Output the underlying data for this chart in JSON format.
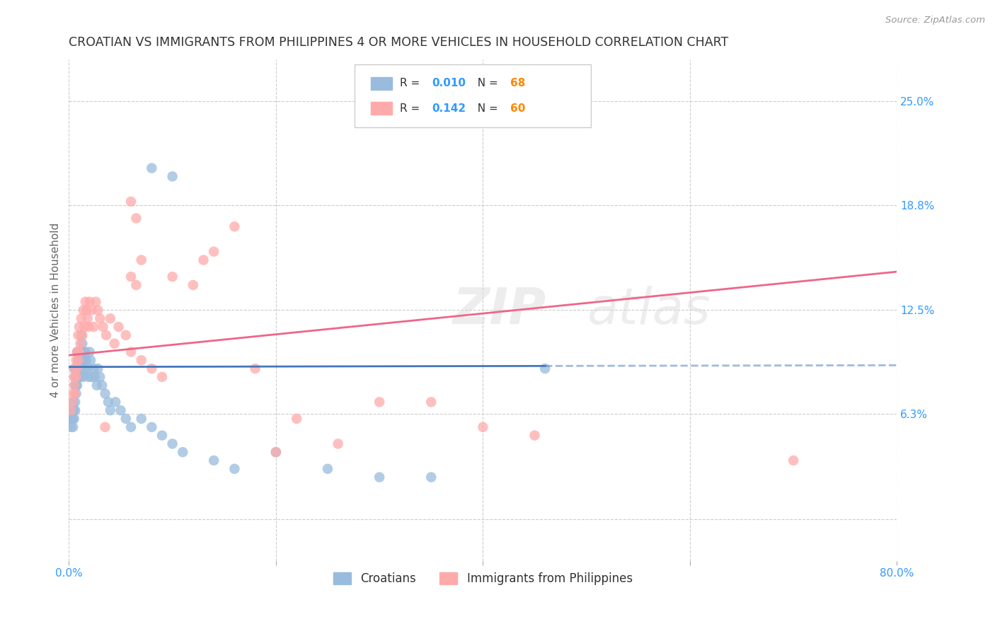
{
  "title": "CROATIAN VS IMMIGRANTS FROM PHILIPPINES 4 OR MORE VEHICLES IN HOUSEHOLD CORRELATION CHART",
  "source": "Source: ZipAtlas.com",
  "ylabel": "4 or more Vehicles in Household",
  "xlim": [
    0.0,
    0.8
  ],
  "ylim": [
    -0.025,
    0.275
  ],
  "xtick_positions": [
    0.0,
    0.2,
    0.4,
    0.6,
    0.8
  ],
  "xticklabels": [
    "0.0%",
    "",
    "",
    "",
    "80.0%"
  ],
  "ytick_right_vals": [
    0.0,
    0.063,
    0.125,
    0.188,
    0.25
  ],
  "ytick_right_labels": [
    "",
    "6.3%",
    "12.5%",
    "18.8%",
    "25.0%"
  ],
  "legend_labels": [
    "Croatians",
    "Immigrants from Philippines"
  ],
  "R_blue": "0.010",
  "N_blue": "68",
  "R_pink": "0.142",
  "N_pink": "60",
  "color_blue": "#99BBDD",
  "color_pink": "#FFAAAA",
  "color_line_blue": "#4477BB",
  "color_line_pink": "#EE6688",
  "color_text_blue": "#3399FF",
  "color_text_orange": "#FF8800",
  "background": "#FFFFFF",
  "grid_color": "#CCCCCC",
  "blue_line_y_start": 0.091,
  "blue_line_y_end": 0.092,
  "blue_line_x_solid_end": 0.46,
  "pink_line_y_start": 0.098,
  "pink_line_y_end": 0.148,
  "blue_scatter_x": [
    0.002,
    0.003,
    0.003,
    0.004,
    0.004,
    0.004,
    0.005,
    0.005,
    0.005,
    0.006,
    0.006,
    0.006,
    0.006,
    0.007,
    0.007,
    0.007,
    0.008,
    0.008,
    0.008,
    0.009,
    0.009,
    0.009,
    0.01,
    0.01,
    0.011,
    0.011,
    0.012,
    0.012,
    0.013,
    0.013,
    0.014,
    0.014,
    0.015,
    0.015,
    0.016,
    0.017,
    0.018,
    0.019,
    0.02,
    0.021,
    0.022,
    0.024,
    0.025,
    0.027,
    0.028,
    0.03,
    0.032,
    0.035,
    0.038,
    0.04,
    0.045,
    0.05,
    0.055,
    0.06,
    0.07,
    0.08,
    0.09,
    0.1,
    0.11,
    0.14,
    0.16,
    0.2,
    0.25,
    0.3,
    0.35,
    0.46,
    0.1,
    0.08
  ],
  "blue_scatter_y": [
    0.055,
    0.06,
    0.065,
    0.055,
    0.06,
    0.07,
    0.06,
    0.065,
    0.09,
    0.065,
    0.07,
    0.08,
    0.085,
    0.075,
    0.08,
    0.09,
    0.08,
    0.09,
    0.1,
    0.085,
    0.09,
    0.095,
    0.09,
    0.1,
    0.085,
    0.095,
    0.1,
    0.11,
    0.095,
    0.105,
    0.085,
    0.1,
    0.09,
    0.095,
    0.1,
    0.095,
    0.09,
    0.085,
    0.1,
    0.095,
    0.085,
    0.09,
    0.085,
    0.08,
    0.09,
    0.085,
    0.08,
    0.075,
    0.07,
    0.065,
    0.07,
    0.065,
    0.06,
    0.055,
    0.06,
    0.055,
    0.05,
    0.045,
    0.04,
    0.035,
    0.03,
    0.04,
    0.03,
    0.025,
    0.025,
    0.09,
    0.205,
    0.21
  ],
  "pink_scatter_x": [
    0.002,
    0.003,
    0.004,
    0.005,
    0.005,
    0.006,
    0.006,
    0.007,
    0.007,
    0.008,
    0.008,
    0.009,
    0.009,
    0.01,
    0.01,
    0.011,
    0.012,
    0.013,
    0.014,
    0.015,
    0.016,
    0.017,
    0.018,
    0.019,
    0.02,
    0.022,
    0.024,
    0.026,
    0.028,
    0.03,
    0.033,
    0.036,
    0.04,
    0.044,
    0.048,
    0.055,
    0.06,
    0.07,
    0.08,
    0.09,
    0.1,
    0.12,
    0.13,
    0.14,
    0.16,
    0.18,
    0.2,
    0.22,
    0.26,
    0.3,
    0.35,
    0.4,
    0.45,
    0.7,
    0.06,
    0.065,
    0.07,
    0.06,
    0.065,
    0.035
  ],
  "pink_scatter_y": [
    0.065,
    0.07,
    0.075,
    0.08,
    0.085,
    0.075,
    0.09,
    0.085,
    0.095,
    0.09,
    0.1,
    0.095,
    0.11,
    0.1,
    0.115,
    0.105,
    0.12,
    0.11,
    0.125,
    0.115,
    0.13,
    0.125,
    0.12,
    0.115,
    0.13,
    0.125,
    0.115,
    0.13,
    0.125,
    0.12,
    0.115,
    0.11,
    0.12,
    0.105,
    0.115,
    0.11,
    0.1,
    0.095,
    0.09,
    0.085,
    0.145,
    0.14,
    0.155,
    0.16,
    0.175,
    0.09,
    0.04,
    0.06,
    0.045,
    0.07,
    0.07,
    0.055,
    0.05,
    0.035,
    0.19,
    0.18,
    0.155,
    0.145,
    0.14,
    0.055
  ]
}
